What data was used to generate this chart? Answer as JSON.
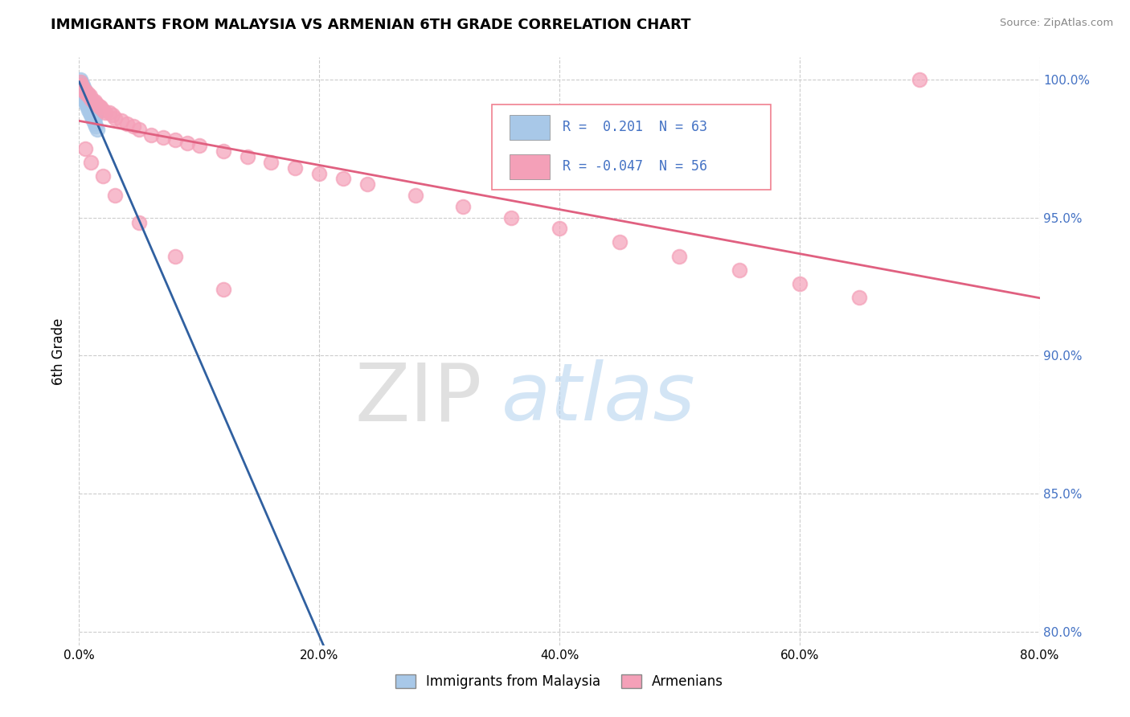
{
  "title": "IMMIGRANTS FROM MALAYSIA VS ARMENIAN 6TH GRADE CORRELATION CHART",
  "source_text": "Source: ZipAtlas.com",
  "ylabel": "6th Grade",
  "xlim": [
    0.0,
    0.8
  ],
  "ylim": [
    0.795,
    1.008
  ],
  "xtick_labels": [
    "0.0%",
    "20.0%",
    "40.0%",
    "60.0%",
    "80.0%"
  ],
  "xtick_values": [
    0.0,
    0.2,
    0.4,
    0.6,
    0.8
  ],
  "ytick_labels": [
    "80.0%",
    "85.0%",
    "90.0%",
    "95.0%",
    "100.0%"
  ],
  "ytick_values": [
    0.8,
    0.85,
    0.9,
    0.95,
    1.0
  ],
  "r_malaysia": 0.201,
  "n_malaysia": 63,
  "r_armenian": -0.047,
  "n_armenian": 56,
  "color_malaysia": "#a8c8e8",
  "color_armenian": "#f4a0b8",
  "trendline_malaysia": "#3060a0",
  "trendline_armenian": "#e06080",
  "watermark_zip": "ZIP",
  "watermark_atlas": "atlas",
  "legend_border": "#f08090",
  "tick_color": "#4472c4",
  "malaysia_x": [
    0.001,
    0.001,
    0.001,
    0.002,
    0.002,
    0.003,
    0.003,
    0.003,
    0.004,
    0.004,
    0.004,
    0.005,
    0.005,
    0.005,
    0.006,
    0.006,
    0.007,
    0.007,
    0.007,
    0.008,
    0.008,
    0.009,
    0.009,
    0.01,
    0.01,
    0.011,
    0.011,
    0.012,
    0.012,
    0.013,
    0.013,
    0.014,
    0.001,
    0.002,
    0.002,
    0.003,
    0.004,
    0.005,
    0.005,
    0.006,
    0.007,
    0.007,
    0.008,
    0.009,
    0.01,
    0.011,
    0.012,
    0.013,
    0.001,
    0.002,
    0.003,
    0.004,
    0.005,
    0.006,
    0.007,
    0.008,
    0.009,
    0.01,
    0.011,
    0.012,
    0.013,
    0.014,
    0.015
  ],
  "malaysia_y": [
    1.0,
    0.999,
    0.998,
    0.999,
    0.998,
    0.998,
    0.997,
    0.996,
    0.997,
    0.996,
    0.995,
    0.996,
    0.995,
    0.994,
    0.995,
    0.994,
    0.994,
    0.993,
    0.992,
    0.993,
    0.992,
    0.992,
    0.991,
    0.991,
    0.99,
    0.99,
    0.989,
    0.989,
    0.988,
    0.988,
    0.987,
    0.987,
    0.997,
    0.997,
    0.996,
    0.996,
    0.995,
    0.994,
    0.993,
    0.993,
    0.992,
    0.991,
    0.991,
    0.99,
    0.989,
    0.988,
    0.987,
    0.986,
    0.996,
    0.995,
    0.994,
    0.993,
    0.992,
    0.991,
    0.99,
    0.989,
    0.988,
    0.987,
    0.986,
    0.985,
    0.984,
    0.983,
    0.982
  ],
  "armenian_x": [
    0.001,
    0.001,
    0.001,
    0.002,
    0.002,
    0.003,
    0.004,
    0.005,
    0.006,
    0.007,
    0.008,
    0.009,
    0.01,
    0.012,
    0.013,
    0.015,
    0.017,
    0.018,
    0.02,
    0.022,
    0.025,
    0.028,
    0.03,
    0.035,
    0.04,
    0.045,
    0.05,
    0.06,
    0.07,
    0.08,
    0.09,
    0.1,
    0.12,
    0.14,
    0.16,
    0.18,
    0.2,
    0.22,
    0.24,
    0.28,
    0.32,
    0.36,
    0.4,
    0.45,
    0.5,
    0.55,
    0.6,
    0.65,
    0.005,
    0.01,
    0.02,
    0.03,
    0.05,
    0.08,
    0.12,
    0.7
  ],
  "armenian_y": [
    0.999,
    0.998,
    0.997,
    0.998,
    0.997,
    0.997,
    0.996,
    0.996,
    0.995,
    0.995,
    0.994,
    0.994,
    0.993,
    0.992,
    0.992,
    0.991,
    0.99,
    0.99,
    0.989,
    0.988,
    0.988,
    0.987,
    0.986,
    0.985,
    0.984,
    0.983,
    0.982,
    0.98,
    0.979,
    0.978,
    0.977,
    0.976,
    0.974,
    0.972,
    0.97,
    0.968,
    0.966,
    0.964,
    0.962,
    0.958,
    0.954,
    0.95,
    0.946,
    0.941,
    0.936,
    0.931,
    0.926,
    0.921,
    0.975,
    0.97,
    0.965,
    0.958,
    0.948,
    0.936,
    0.924,
    1.0
  ]
}
